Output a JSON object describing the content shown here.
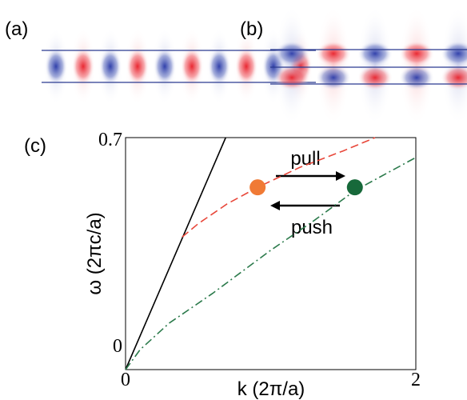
{
  "panel_labels": [
    "(a)",
    "(b)",
    "(c)"
  ],
  "chart_data": {
    "type": "line",
    "xlabel": "k (2π/a)",
    "ylabel": "ω (2πc/a)",
    "xlim": [
      0,
      2
    ],
    "ylim": [
      0,
      0.7
    ],
    "xticks": [
      0,
      2
    ],
    "yticks": [
      0,
      0.7
    ],
    "series": [
      {
        "color": "#000000",
        "dash": "solid",
        "x": [
          0,
          0.69
        ],
        "values": [
          0,
          0.7
        ]
      },
      {
        "color": "#e8473a",
        "dash": "dash",
        "x": [
          0.39,
          0.5,
          0.7,
          0.91,
          1.2,
          1.5,
          1.72
        ],
        "values": [
          0.4,
          0.44,
          0.5,
          0.55,
          0.61,
          0.66,
          0.7
        ]
      },
      {
        "color": "#2b7a4b",
        "dash": "dashdot",
        "x": [
          0,
          0.1,
          0.3,
          0.6,
          1.0,
          1.3,
          1.58,
          2
        ],
        "values": [
          0,
          0.06,
          0.14,
          0.23,
          0.36,
          0.45,
          0.54,
          0.64
        ]
      }
    ],
    "markers": [
      {
        "x": 0.91,
        "y": 0.55,
        "color": "#f07a35"
      },
      {
        "x": 1.58,
        "y": 0.55,
        "color": "#17693a"
      }
    ],
    "annotations": [
      "pull",
      "push"
    ]
  }
}
